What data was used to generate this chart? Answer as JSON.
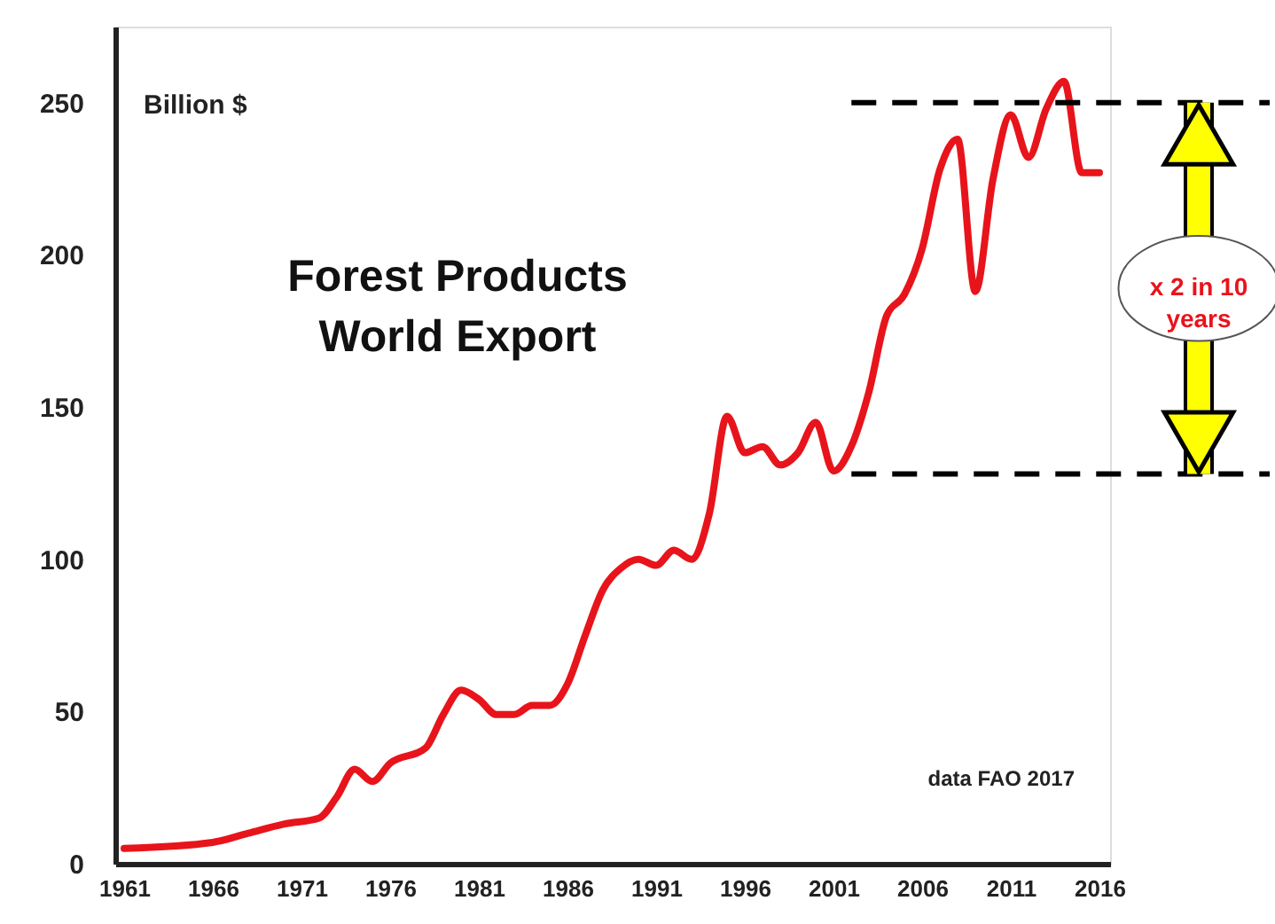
{
  "chart_data": {
    "type": "line",
    "title": "Forest Products\nWorld Export",
    "ylabel": "Billion $",
    "x": [
      1961,
      1966,
      1968,
      1970,
      1972,
      1973,
      1974,
      1975,
      1976,
      1978,
      1979,
      1980,
      1981,
      1982,
      1983,
      1984,
      1985,
      1986,
      1987,
      1988,
      1989,
      1990,
      1991,
      1992,
      1993,
      1994,
      1995,
      1996,
      1997,
      1998,
      1999,
      2000,
      2001,
      2002,
      2003,
      2004,
      2005,
      2006,
      2007,
      2008,
      2009,
      2010,
      2011,
      2012,
      2013,
      2014,
      2015,
      2016
    ],
    "series": [
      {
        "color": "#e8141b",
        "values": [
          5,
          7,
          10,
          13,
          15,
          22,
          31,
          27,
          33,
          38,
          49,
          57,
          54,
          49,
          49,
          52,
          52,
          59,
          75,
          90,
          97,
          100,
          98,
          103,
          100,
          115,
          147,
          135,
          137,
          131,
          135,
          145,
          129,
          137,
          155,
          180,
          187,
          202,
          228,
          238,
          188,
          225,
          246,
          232,
          248,
          257,
          227,
          227
        ]
      }
    ],
    "xlim": [
      1960.5,
      2016.6
    ],
    "xticks": [
      1961,
      1966,
      1971,
      1976,
      1981,
      1986,
      1991,
      1996,
      2001,
      2006,
      2011,
      2016
    ],
    "ylim": [
      0,
      275
    ],
    "yticks": [
      0,
      50,
      100,
      150,
      200,
      250
    ],
    "ref_lines": [
      {
        "axis": "y",
        "value": 250,
        "color": "#000000",
        "line_style": "dashed"
      },
      {
        "axis": "y",
        "value": 128,
        "color": "#000000",
        "line_style": "dashed"
      }
    ],
    "annotations": [
      "x 2 in 10 years",
      "data FAO 2017"
    ],
    "grid": false,
    "marker": "none",
    "line_style": "solid"
  }
}
